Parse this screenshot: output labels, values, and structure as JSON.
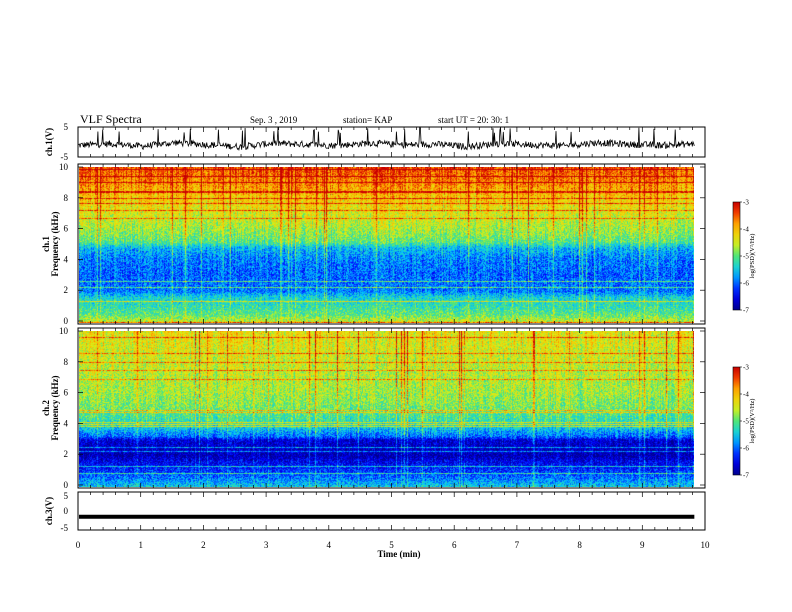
{
  "header": {
    "title": "VLF Spectra",
    "date": "Sep. 3  , 2019",
    "station": "station= KAP",
    "start": "start  UT =   20: 30: 1"
  },
  "chart_data": [
    {
      "type": "line",
      "panel": "ch1-waveform",
      "ylabel": "ch.1(V)",
      "ylim": [
        -5,
        5
      ],
      "yticks": [
        "5",
        "-5"
      ],
      "series": [
        {
          "values": [
            -1.1,
            -0.6,
            -1.4,
            -0.2,
            -0.9,
            -1.6,
            -0.4,
            -0.8,
            -1.2,
            -0.3,
            -1.0,
            -0.7,
            -1.5,
            -0.5,
            -0.9,
            -1.3,
            -0.2,
            -0.8,
            -1.1,
            -0.6
          ]
        }
      ]
    },
    {
      "type": "heatmap",
      "panel": "ch1-spectrogram",
      "ylabel": "ch.1\nFrequency (kHz)",
      "ylabel_line1": "ch.1",
      "ylabel_line2": "Frequency (kHz)",
      "ylim": [
        0,
        10
      ],
      "yticks": [
        "0",
        "2",
        "4",
        "6",
        "8",
        "10"
      ],
      "colorbar": {
        "label": "log(PSD)(V²/Hz)",
        "ticks": [
          "-3",
          "-4",
          "-5",
          "-6",
          "-7"
        ],
        "range": [
          -7,
          -3
        ]
      },
      "profile_khz": [
        [
          0,
          -4.5
        ],
        [
          0.5,
          -5.0
        ],
        [
          1.0,
          -5.2
        ],
        [
          1.6,
          -5.4
        ],
        [
          2.0,
          -5.9
        ],
        [
          3.0,
          -6.0
        ],
        [
          4.0,
          -5.9
        ],
        [
          4.8,
          -5.6
        ],
        [
          5.2,
          -5.0
        ],
        [
          6.0,
          -4.7
        ],
        [
          7.0,
          -4.4
        ],
        [
          8.0,
          -4.1
        ],
        [
          9.0,
          -3.7
        ],
        [
          10.0,
          -3.4
        ]
      ]
    },
    {
      "type": "heatmap",
      "panel": "ch2-spectrogram",
      "ylabel": "ch.2\nFrequency (kHz)",
      "ylabel_line1": "ch.2",
      "ylabel_line2": "Frequency (kHz)",
      "ylim": [
        0,
        10
      ],
      "yticks": [
        "0",
        "2",
        "4",
        "6",
        "8",
        "10"
      ],
      "colorbar": {
        "label": "log(PSD)(V²/Hz)",
        "ticks": [
          "-3",
          "-4",
          "-5",
          "-6",
          "-7"
        ],
        "range": [
          -7,
          -3
        ]
      },
      "profile_khz": [
        [
          0,
          -5.5
        ],
        [
          0.5,
          -5.9
        ],
        [
          1.0,
          -6.2
        ],
        [
          1.6,
          -6.5
        ],
        [
          2.0,
          -6.8
        ],
        [
          3.0,
          -6.6
        ],
        [
          3.2,
          -6.0
        ],
        [
          4.0,
          -5.3
        ],
        [
          5.0,
          -4.9
        ],
        [
          6.0,
          -4.7
        ],
        [
          7.0,
          -4.6
        ],
        [
          8.0,
          -4.5
        ],
        [
          9.0,
          -4.4
        ],
        [
          10.0,
          -4.3
        ]
      ]
    },
    {
      "type": "line",
      "panel": "ch3-waveform",
      "ylabel": "ch.3(V)",
      "ylim": [
        -5,
        5
      ],
      "yticks": [
        "5",
        "0",
        "-5"
      ],
      "series": [
        {
          "values": [
            -1.5,
            -1.5
          ]
        }
      ]
    }
  ],
  "xaxis": {
    "label": "Time (min)",
    "range": [
      0,
      10
    ],
    "ticks": [
      "0",
      "1",
      "2",
      "3",
      "4",
      "5",
      "6",
      "7",
      "8",
      "9",
      "10"
    ],
    "data_end": 9.83
  }
}
